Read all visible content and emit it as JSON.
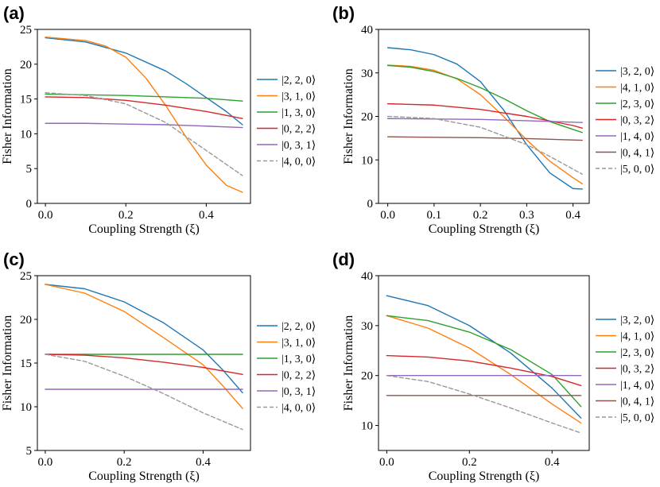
{
  "figure": {
    "palette": {
      "blue": "#1f77b4",
      "orange": "#ff7f0e",
      "green": "#2ca02c",
      "red": "#d62728",
      "purple": "#9467bd",
      "brown": "#8c564b",
      "gray": "#999999"
    }
  },
  "chart_data": [
    {
      "panel": "(a)",
      "type": "line",
      "xlabel": "Coupling Strength (ξ)",
      "ylabel": "Fisher Information",
      "xlim": [
        -0.02,
        0.51
      ],
      "ylim": [
        0,
        25
      ],
      "xticks": [
        0.0,
        0.2,
        0.4
      ],
      "xtick_labels": [
        "0.0",
        "0.2",
        "0.4"
      ],
      "yticks": [
        0,
        5,
        10,
        15,
        20,
        25
      ],
      "ytick_labels": [
        "0",
        "5",
        "10",
        "15",
        "20",
        "25"
      ],
      "legend_position": "right",
      "series": [
        {
          "name": "|2, 2, 0⟩",
          "color": "#1f77b4",
          "dashed": false,
          "x": [
            0,
            0.1,
            0.2,
            0.3,
            0.35,
            0.4,
            0.45,
            0.49
          ],
          "y": [
            23.8,
            23.2,
            21.6,
            19.0,
            17.2,
            15.2,
            13.2,
            11.3
          ]
        },
        {
          "name": "|3, 1, 0⟩",
          "color": "#ff7f0e",
          "dashed": false,
          "x": [
            0,
            0.1,
            0.15,
            0.2,
            0.25,
            0.3,
            0.35,
            0.4,
            0.45,
            0.49
          ],
          "y": [
            23.9,
            23.4,
            22.6,
            21.0,
            18.0,
            14.0,
            9.5,
            5.5,
            2.6,
            1.6
          ]
        },
        {
          "name": "|1, 3, 0⟩",
          "color": "#2ca02c",
          "dashed": false,
          "x": [
            0,
            0.1,
            0.2,
            0.3,
            0.4,
            0.49
          ],
          "y": [
            15.7,
            15.6,
            15.5,
            15.3,
            15.1,
            14.7
          ]
        },
        {
          "name": "|0, 2, 2⟩",
          "color": "#d62728",
          "dashed": false,
          "x": [
            0,
            0.1,
            0.2,
            0.3,
            0.4,
            0.49
          ],
          "y": [
            15.3,
            15.2,
            14.8,
            14.1,
            13.2,
            12.2
          ]
        },
        {
          "name": "|0, 3, 1⟩",
          "color": "#9467bd",
          "dashed": false,
          "x": [
            0,
            0.1,
            0.2,
            0.3,
            0.4,
            0.49
          ],
          "y": [
            11.5,
            11.5,
            11.4,
            11.3,
            11.1,
            10.9
          ]
        },
        {
          "name": "|4, 0, 0⟩",
          "color": "#999999",
          "dashed": true,
          "x": [
            0,
            0.1,
            0.2,
            0.3,
            0.35,
            0.4,
            0.45,
            0.49
          ],
          "y": [
            15.9,
            15.5,
            14.3,
            11.6,
            9.6,
            7.6,
            5.6,
            4.0
          ]
        }
      ]
    },
    {
      "panel": "(b)",
      "type": "line",
      "xlabel": "Coupling Strength (ξ)",
      "ylabel": "Fisher Information",
      "xlim": [
        -0.02,
        0.435
      ],
      "ylim": [
        0,
        40
      ],
      "xticks": [
        0.0,
        0.1,
        0.2,
        0.3,
        0.4
      ],
      "xtick_labels": [
        "0.0",
        "0.1",
        "0.2",
        "0.3",
        "0.4"
      ],
      "yticks": [
        0,
        10,
        20,
        30,
        40
      ],
      "ytick_labels": [
        "0",
        "10",
        "20",
        "30",
        "40"
      ],
      "legend_position": "right",
      "series": [
        {
          "name": "|3, 2, 0⟩",
          "color": "#1f77b4",
          "dashed": false,
          "x": [
            0,
            0.05,
            0.1,
            0.15,
            0.2,
            0.25,
            0.3,
            0.35,
            0.4,
            0.42
          ],
          "y": [
            35.8,
            35.3,
            34.2,
            32.0,
            28.0,
            21.5,
            13.5,
            7.0,
            3.4,
            3.3
          ]
        },
        {
          "name": "|4, 1, 0⟩",
          "color": "#ff7f0e",
          "dashed": false,
          "x": [
            0,
            0.05,
            0.1,
            0.15,
            0.2,
            0.25,
            0.3,
            0.35,
            0.4,
            0.42
          ],
          "y": [
            31.8,
            31.5,
            30.6,
            28.6,
            25.0,
            20.0,
            14.6,
            9.7,
            5.9,
            4.5
          ]
        },
        {
          "name": "|2, 3, 0⟩",
          "color": "#2ca02c",
          "dashed": false,
          "x": [
            0,
            0.05,
            0.1,
            0.15,
            0.2,
            0.25,
            0.3,
            0.35,
            0.4,
            0.42
          ],
          "y": [
            31.7,
            31.3,
            30.3,
            28.7,
            26.6,
            24.1,
            21.3,
            18.8,
            17.0,
            16.3
          ]
        },
        {
          "name": "|0, 3, 2⟩",
          "color": "#d62728",
          "dashed": false,
          "x": [
            0,
            0.1,
            0.2,
            0.3,
            0.4,
            0.42
          ],
          "y": [
            22.9,
            22.6,
            21.6,
            20.0,
            17.9,
            17.3
          ]
        },
        {
          "name": "|1, 4, 0⟩",
          "color": "#9467bd",
          "dashed": false,
          "x": [
            0,
            0.1,
            0.2,
            0.3,
            0.42
          ],
          "y": [
            19.5,
            19.4,
            19.3,
            19.0,
            18.6
          ]
        },
        {
          "name": "|0, 4, 1⟩",
          "color": "#8c564b",
          "dashed": false,
          "x": [
            0,
            0.1,
            0.2,
            0.3,
            0.42
          ],
          "y": [
            15.3,
            15.2,
            15.1,
            14.9,
            14.5
          ]
        },
        {
          "name": "|5, 0, 0⟩",
          "color": "#999999",
          "dashed": true,
          "x": [
            0,
            0.1,
            0.2,
            0.3,
            0.35,
            0.42
          ],
          "y": [
            20.0,
            19.5,
            17.5,
            13.5,
            10.8,
            6.7
          ]
        }
      ]
    },
    {
      "panel": "(c)",
      "type": "line",
      "xlabel": "Coupling Strength (ξ)",
      "ylabel": "Fisher Information",
      "xlim": [
        -0.02,
        0.52
      ],
      "ylim": [
        5,
        25
      ],
      "xticks": [
        0.0,
        0.2,
        0.4
      ],
      "xtick_labels": [
        "0.0",
        "0.2",
        "0.4"
      ],
      "yticks": [
        5,
        10,
        15,
        20,
        25
      ],
      "ytick_labels": [
        "5",
        "10",
        "15",
        "20",
        "25"
      ],
      "legend_position": "right",
      "series": [
        {
          "name": "|2, 2, 0⟩",
          "color": "#1f77b4",
          "dashed": false,
          "x": [
            0,
            0.1,
            0.2,
            0.3,
            0.4,
            0.45,
            0.5
          ],
          "y": [
            24.0,
            23.5,
            22.0,
            19.6,
            16.5,
            14.2,
            11.6
          ]
        },
        {
          "name": "|3, 1, 0⟩",
          "color": "#ff7f0e",
          "dashed": false,
          "x": [
            0,
            0.1,
            0.2,
            0.3,
            0.4,
            0.45,
            0.5
          ],
          "y": [
            24.0,
            23.0,
            20.9,
            17.9,
            14.8,
            12.4,
            9.8
          ]
        },
        {
          "name": "|1, 3, 0⟩",
          "color": "#2ca02c",
          "dashed": false,
          "x": [
            0,
            0.5
          ],
          "y": [
            16.0,
            16.0
          ]
        },
        {
          "name": "|0, 2, 2⟩",
          "color": "#d62728",
          "dashed": false,
          "x": [
            0,
            0.1,
            0.2,
            0.3,
            0.4,
            0.5
          ],
          "y": [
            16.0,
            15.9,
            15.6,
            15.1,
            14.5,
            13.7
          ]
        },
        {
          "name": "|0, 3, 1⟩",
          "color": "#9467bd",
          "dashed": false,
          "x": [
            0,
            0.5
          ],
          "y": [
            12.0,
            12.0
          ]
        },
        {
          "name": "|4, 0, 0⟩",
          "color": "#999999",
          "dashed": true,
          "x": [
            0,
            0.1,
            0.2,
            0.3,
            0.4,
            0.5
          ],
          "y": [
            16.0,
            15.2,
            13.5,
            11.5,
            9.3,
            7.4
          ]
        }
      ]
    },
    {
      "panel": "(d)",
      "type": "line",
      "xlabel": "Coupling Strength (ξ)",
      "ylabel": "Fisher Information",
      "xlim": [
        -0.02,
        0.49
      ],
      "ylim": [
        5,
        40
      ],
      "xticks": [
        0.0,
        0.2,
        0.4
      ],
      "xtick_labels": [
        "0.0",
        "0.2",
        "0.4"
      ],
      "yticks": [
        10,
        20,
        30,
        40
      ],
      "ytick_labels": [
        "10",
        "20",
        "30",
        "40"
      ],
      "legend_position": "right",
      "series": [
        {
          "name": "|3, 2, 0⟩",
          "color": "#1f77b4",
          "dashed": false,
          "x": [
            0,
            0.1,
            0.2,
            0.3,
            0.4,
            0.47
          ],
          "y": [
            36.0,
            34.0,
            30.0,
            24.5,
            17.5,
            11.5
          ]
        },
        {
          "name": "|4, 1, 0⟩",
          "color": "#ff7f0e",
          "dashed": false,
          "x": [
            0,
            0.1,
            0.2,
            0.3,
            0.4,
            0.47
          ],
          "y": [
            32.0,
            29.5,
            25.5,
            20.2,
            14.3,
            10.5
          ]
        },
        {
          "name": "|2, 3, 0⟩",
          "color": "#2ca02c",
          "dashed": false,
          "x": [
            0,
            0.1,
            0.2,
            0.3,
            0.4,
            0.47
          ],
          "y": [
            32.0,
            31.0,
            28.7,
            25.2,
            20.2,
            13.8
          ]
        },
        {
          "name": "|0, 3, 2⟩",
          "color": "#d62728",
          "dashed": false,
          "x": [
            0,
            0.1,
            0.2,
            0.3,
            0.4,
            0.47
          ],
          "y": [
            24.0,
            23.7,
            22.9,
            21.5,
            19.8,
            18.0
          ]
        },
        {
          "name": "|1, 4, 0⟩",
          "color": "#9467bd",
          "dashed": false,
          "x": [
            0,
            0.47
          ],
          "y": [
            20.0,
            20.0
          ]
        },
        {
          "name": "|0, 4, 1⟩",
          "color": "#8c564b",
          "dashed": false,
          "x": [
            0,
            0.47
          ],
          "y": [
            16.0,
            16.0
          ]
        },
        {
          "name": "|5, 0, 0⟩",
          "color": "#999999",
          "dashed": true,
          "x": [
            0,
            0.1,
            0.2,
            0.3,
            0.4,
            0.47
          ],
          "y": [
            20.0,
            18.8,
            16.3,
            13.5,
            10.5,
            8.5
          ]
        }
      ]
    }
  ]
}
